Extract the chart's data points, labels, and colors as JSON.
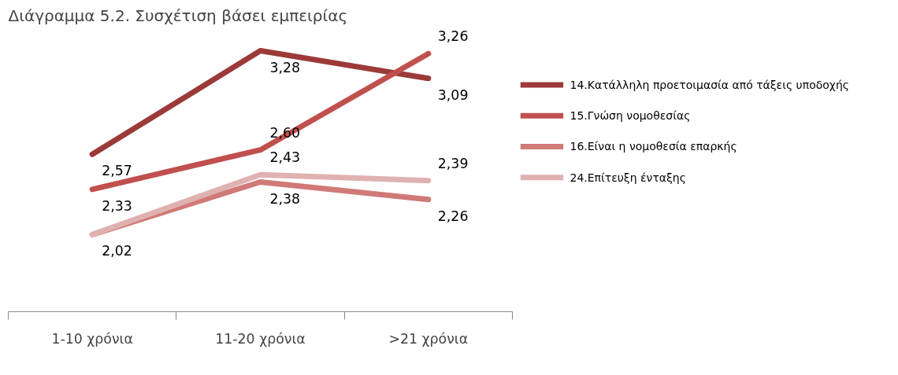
{
  "chart_data": {
    "type": "line",
    "title": "Διάγραμμα 5.2. Συσχέτιση βάσει εμπειρίας",
    "categories": [
      "1-10 χρόνια",
      "11-20 χρόνια",
      ">21 χρόνια"
    ],
    "series": [
      {
        "name": "14.Κατάλληλη προετοιμασία από τάξεις υποδοχής",
        "color": "#9b3a38",
        "values": [
          2.57,
          3.28,
          3.09
        ],
        "value_labels": [
          "2,57",
          "3,28",
          "3,09"
        ]
      },
      {
        "name": "15.Γνώση νομοθεσίας",
        "color": "#c0504d",
        "values": [
          2.33,
          2.6,
          3.26
        ],
        "value_labels": [
          "2,33",
          "2,60",
          "3,26"
        ]
      },
      {
        "name": "16.Είναι η νομοθεσία επαρκής",
        "color": "#d07a78",
        "values": [
          2.02,
          2.38,
          2.26
        ],
        "value_labels": [
          null,
          "2,38",
          "2,26"
        ]
      },
      {
        "name": "24.Επίτευξη ένταξης",
        "color": "#dfb2b1",
        "values": [
          2.02,
          2.43,
          2.39
        ],
        "value_labels": [
          "2,02",
          "2,43",
          "2,39"
        ]
      }
    ],
    "legend": "right",
    "grid": false
  }
}
